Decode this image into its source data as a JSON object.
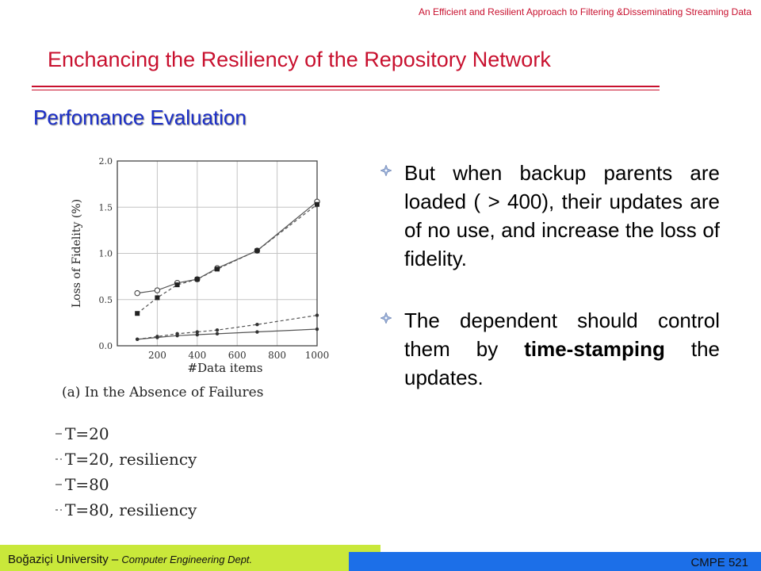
{
  "header": {
    "deck_title": "An Efficient and Resilient Approach to Filtering &Disseminating Streaming Data",
    "slide_title": "Enchancing the Resiliency of the Repository Network",
    "section": "Perfomance Evaluation"
  },
  "bullets": [
    {
      "parts": [
        {
          "text": "But when backup parents are loaded ( > 400), their updates are of no use, and increase the loss of fidelity.",
          "bold": false
        }
      ]
    },
    {
      "parts": [
        {
          "text": "The dependent should control them by ",
          "bold": false
        },
        {
          "text": "time-stamping",
          "bold": true
        },
        {
          "text": " the updates.",
          "bold": false
        }
      ]
    }
  ],
  "footer": {
    "university": "Boğaziçi University – ",
    "dept": "Computer Engineering Dept.",
    "course": "CMPE 521"
  },
  "colors": {
    "title": "#c8102e",
    "section": "#1c2fc8",
    "footer_green": "#c9e83a",
    "footer_blue": "#1c6fe8"
  },
  "icons": {
    "bullet": "diamond-bullet-icon"
  },
  "chart_data": {
    "type": "line",
    "caption": "(a)  In the Absence of Failures",
    "xlabel": "#Data items",
    "ylabel": "Loss of Fidelity (%)",
    "xlim": [
      0,
      1000
    ],
    "ylim": [
      0,
      2.0
    ],
    "xticks": [
      200,
      400,
      600,
      800,
      1000
    ],
    "yticks": [
      0.0,
      0.5,
      1.0,
      1.5,
      2.0
    ],
    "ytick_labels": [
      "0.0",
      "0.5",
      "1.0",
      "1.5",
      "2.0"
    ],
    "x": [
      100,
      200,
      300,
      400,
      500,
      700,
      1000
    ],
    "grid": true,
    "legend_position": "below",
    "series": [
      {
        "name": "T=20",
        "marker": "dot",
        "dash": "solid",
        "values": [
          0.07,
          0.09,
          0.11,
          0.12,
          0.13,
          0.15,
          0.18
        ]
      },
      {
        "name": "T=20, resiliency",
        "marker": "dot",
        "dash": "dashed",
        "values": [
          0.07,
          0.1,
          0.13,
          0.15,
          0.17,
          0.23,
          0.33
        ]
      },
      {
        "name": "T=80",
        "marker": "circle",
        "dash": "solid",
        "values": [
          0.57,
          0.6,
          0.68,
          0.72,
          0.84,
          1.03,
          1.56
        ]
      },
      {
        "name": "T=80, resiliency",
        "marker": "square",
        "dash": "dashed",
        "values": [
          0.35,
          0.52,
          0.66,
          0.72,
          0.83,
          1.03,
          1.53
        ]
      }
    ]
  }
}
